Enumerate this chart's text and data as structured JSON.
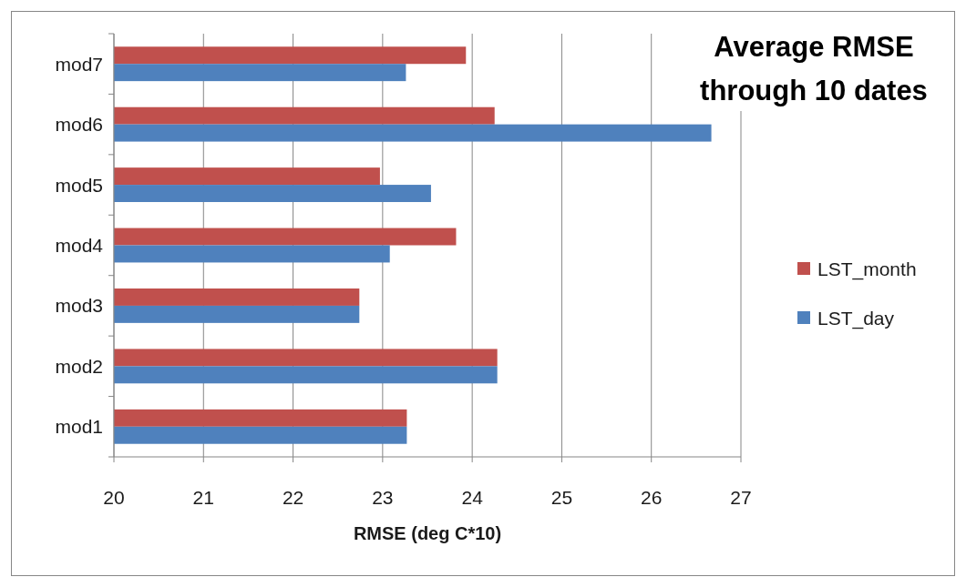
{
  "chart_data": {
    "type": "bar",
    "orientation": "horizontal",
    "title": "Average RMSE through 10 dates",
    "xlabel": "RMSE (deg C*10)",
    "categories": [
      "mod7",
      "mod6",
      "mod5",
      "mod4",
      "mod3",
      "mod2",
      "mod1"
    ],
    "series": [
      {
        "name": "LST_month",
        "color": "#c0504d",
        "values": [
          23.93,
          24.25,
          22.97,
          23.82,
          22.74,
          24.28,
          23.27
        ]
      },
      {
        "name": "LST_day",
        "color": "#4f81bd",
        "values": [
          23.26,
          26.67,
          23.54,
          23.08,
          22.74,
          24.28,
          23.27
        ]
      }
    ],
    "xlim": [
      20,
      27
    ],
    "xticks": [
      20,
      21,
      22,
      23,
      24,
      25,
      26,
      27
    ],
    "grid": "x",
    "legend": "right"
  }
}
